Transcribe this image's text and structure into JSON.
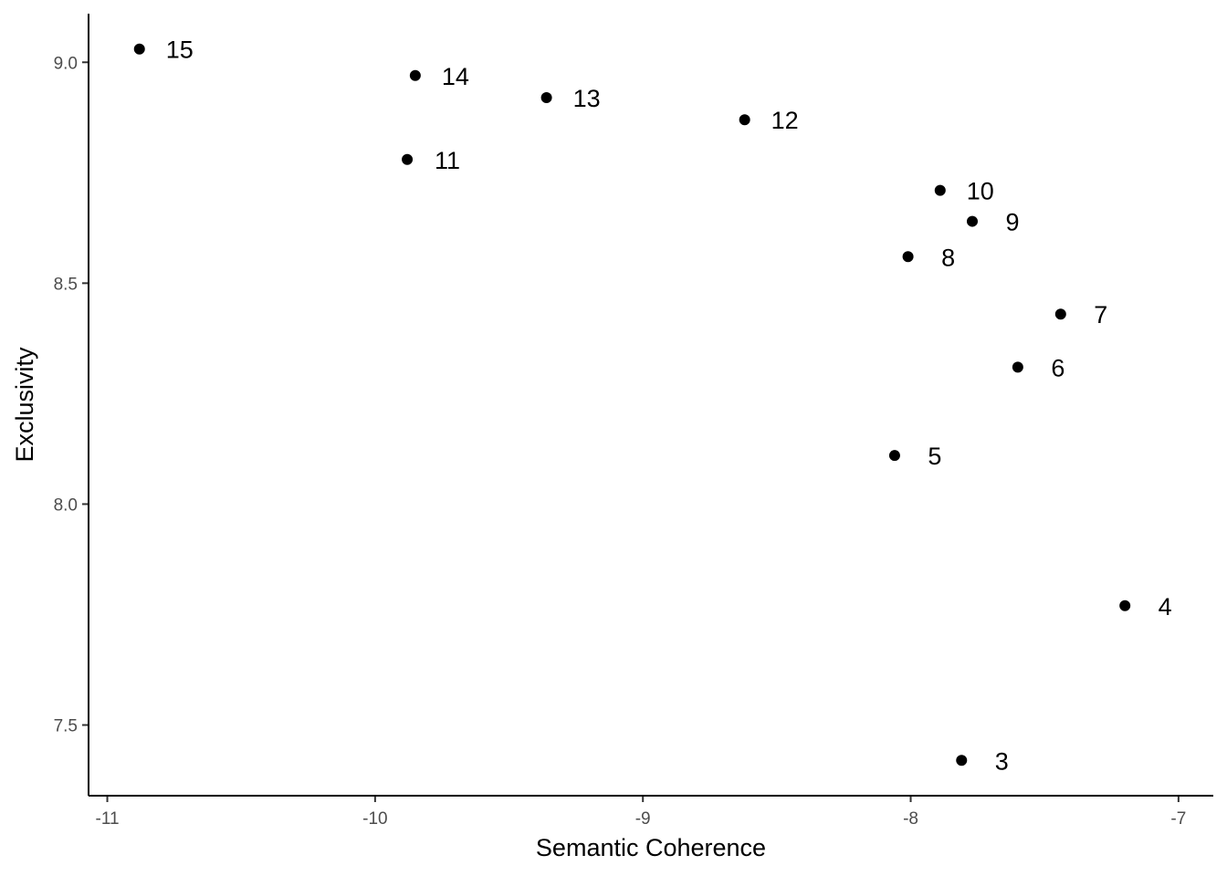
{
  "chart_data": {
    "type": "scatter",
    "title": "",
    "xlabel": "Semantic Coherence",
    "ylabel": "Exclusivity",
    "xlim": [
      -11.07,
      -6.87
    ],
    "ylim": [
      7.34,
      9.11
    ],
    "xticks": [
      -11,
      -10,
      -9,
      -8,
      -7
    ],
    "yticks": [
      7.5,
      8.0,
      8.5,
      9.0
    ],
    "xtick_labels": [
      "-11",
      "-10",
      "-9",
      "-8",
      "-7"
    ],
    "ytick_labels": [
      "7.5",
      "8.0",
      "8.5",
      "9.0"
    ],
    "grid": false,
    "legend": "none",
    "point_color": "#000000",
    "points": [
      {
        "label": "3",
        "x": -7.81,
        "y": 7.42
      },
      {
        "label": "4",
        "x": -7.2,
        "y": 7.77
      },
      {
        "label": "5",
        "x": -8.06,
        "y": 8.11
      },
      {
        "label": "6",
        "x": -7.6,
        "y": 8.31
      },
      {
        "label": "7",
        "x": -7.44,
        "y": 8.43
      },
      {
        "label": "8",
        "x": -8.01,
        "y": 8.56
      },
      {
        "label": "9",
        "x": -7.77,
        "y": 8.64
      },
      {
        "label": "10",
        "x": -7.89,
        "y": 8.71
      },
      {
        "label": "11",
        "x": -9.88,
        "y": 8.78
      },
      {
        "label": "12",
        "x": -8.62,
        "y": 8.87
      },
      {
        "label": "13",
        "x": -9.36,
        "y": 8.92
      },
      {
        "label": "14",
        "x": -9.85,
        "y": 8.97
      },
      {
        "label": "15",
        "x": -10.88,
        "y": 9.03
      }
    ]
  }
}
